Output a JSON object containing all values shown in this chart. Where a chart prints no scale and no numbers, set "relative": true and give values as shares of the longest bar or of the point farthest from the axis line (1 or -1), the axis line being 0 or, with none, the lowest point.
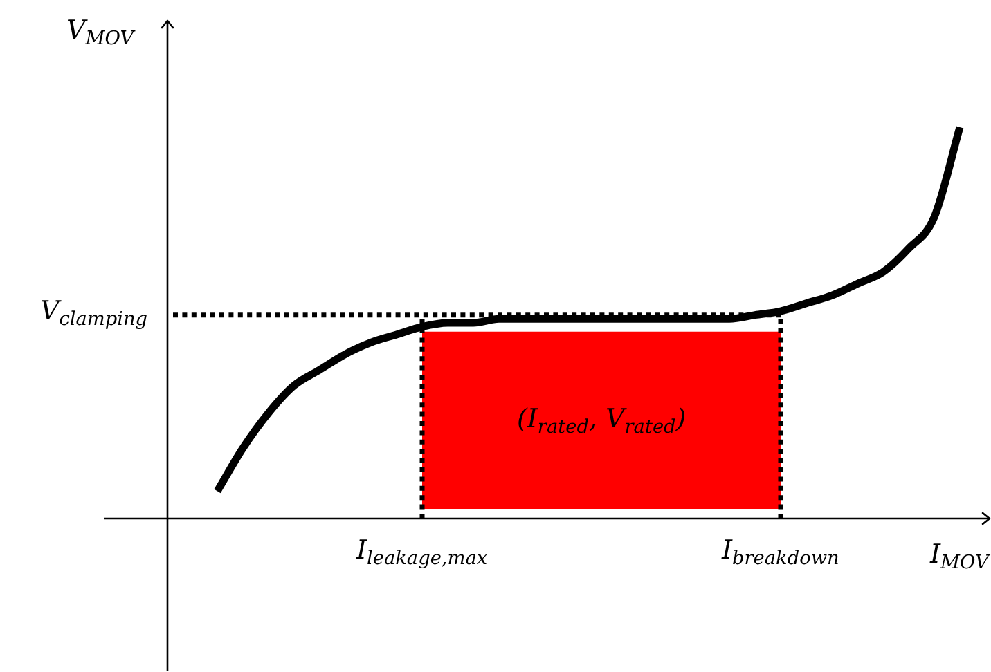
{
  "chart_data": {
    "type": "line",
    "relative": true,
    "xlabel": "I$_{MOV}$",
    "ylabel": "V$_{MOV}$",
    "categories": [
      null,
      null,
      null,
      null,
      null,
      null,
      null,
      null,
      "I$_{leakage,max}$",
      null,
      null,
      null,
      null,
      null,
      null,
      null,
      null,
      null,
      null,
      null,
      null,
      null,
      "I$_{breakdown}$",
      null,
      null,
      null,
      null,
      null,
      null,
      null
    ],
    "series": [
      {
        "color": "#000000",
        "values": [
          0.07,
          0.18,
          0.27,
          0.34,
          0.38,
          0.42,
          0.45,
          0.47,
          0.49,
          0.5,
          0.5,
          0.51,
          0.51,
          0.51,
          0.51,
          0.51,
          0.51,
          0.51,
          0.51,
          0.51,
          0.51,
          0.52,
          0.53,
          0.55,
          0.57,
          0.6,
          0.63,
          0.69,
          0.77,
          1
        ]
      }
    ],
    "ref_lines": [
      {
        "axis": "y",
        "value": 0.52,
        "label": "V$_{clamping}$",
        "color": "#000000",
        "line_style": "dotted"
      },
      {
        "axis": "x",
        "value": "I$_{leakage,max}$",
        "color": "#000000",
        "line_style": "dotted"
      },
      {
        "axis": "x",
        "value": "I$_{breakdown}$",
        "color": "#000000",
        "line_style": "dotted"
      }
    ],
    "bands": [
      {
        "axis": "x",
        "from": "I$_{leakage,max}$",
        "to": "I$_{breakdown}$",
        "label": "(I$_{rated}$, V$_{rated}$)",
        "color": "#ff0000"
      }
    ],
    "marker": "none",
    "line_style": "solid"
  }
}
